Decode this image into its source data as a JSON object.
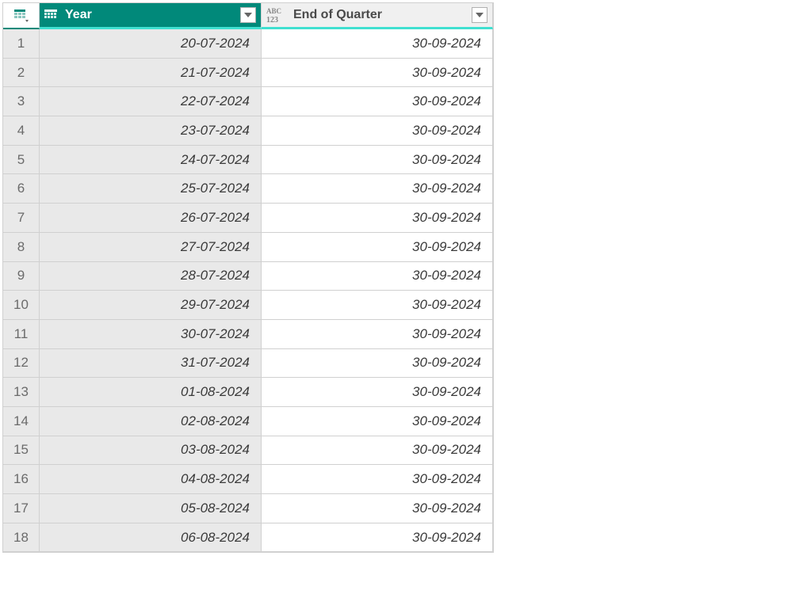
{
  "columns": [
    {
      "name": "Year",
      "selected": true,
      "typeIcon": "date"
    },
    {
      "name": "End of Quarter",
      "selected": false,
      "typeIcon": "abc123"
    }
  ],
  "rows": [
    {
      "n": "1",
      "year": "20-07-2024",
      "eoq": "30-09-2024"
    },
    {
      "n": "2",
      "year": "21-07-2024",
      "eoq": "30-09-2024"
    },
    {
      "n": "3",
      "year": "22-07-2024",
      "eoq": "30-09-2024"
    },
    {
      "n": "4",
      "year": "23-07-2024",
      "eoq": "30-09-2024"
    },
    {
      "n": "5",
      "year": "24-07-2024",
      "eoq": "30-09-2024"
    },
    {
      "n": "6",
      "year": "25-07-2024",
      "eoq": "30-09-2024"
    },
    {
      "n": "7",
      "year": "26-07-2024",
      "eoq": "30-09-2024"
    },
    {
      "n": "8",
      "year": "27-07-2024",
      "eoq": "30-09-2024"
    },
    {
      "n": "9",
      "year": "28-07-2024",
      "eoq": "30-09-2024"
    },
    {
      "n": "10",
      "year": "29-07-2024",
      "eoq": "30-09-2024"
    },
    {
      "n": "11",
      "year": "30-07-2024",
      "eoq": "30-09-2024"
    },
    {
      "n": "12",
      "year": "31-07-2024",
      "eoq": "30-09-2024"
    },
    {
      "n": "13",
      "year": "01-08-2024",
      "eoq": "30-09-2024"
    },
    {
      "n": "14",
      "year": "02-08-2024",
      "eoq": "30-09-2024"
    },
    {
      "n": "15",
      "year": "03-08-2024",
      "eoq": "30-09-2024"
    },
    {
      "n": "16",
      "year": "04-08-2024",
      "eoq": "30-09-2024"
    },
    {
      "n": "17",
      "year": "05-08-2024",
      "eoq": "30-09-2024"
    },
    {
      "n": "18",
      "year": "06-08-2024",
      "eoq": "30-09-2024"
    }
  ],
  "colors": {
    "headerSelected": "#01897a",
    "accentBar": "#40e0d0",
    "rowNumBg": "#e9e9e9",
    "selectedColBg": "#e9e9e9",
    "border": "#d0d0d0"
  }
}
